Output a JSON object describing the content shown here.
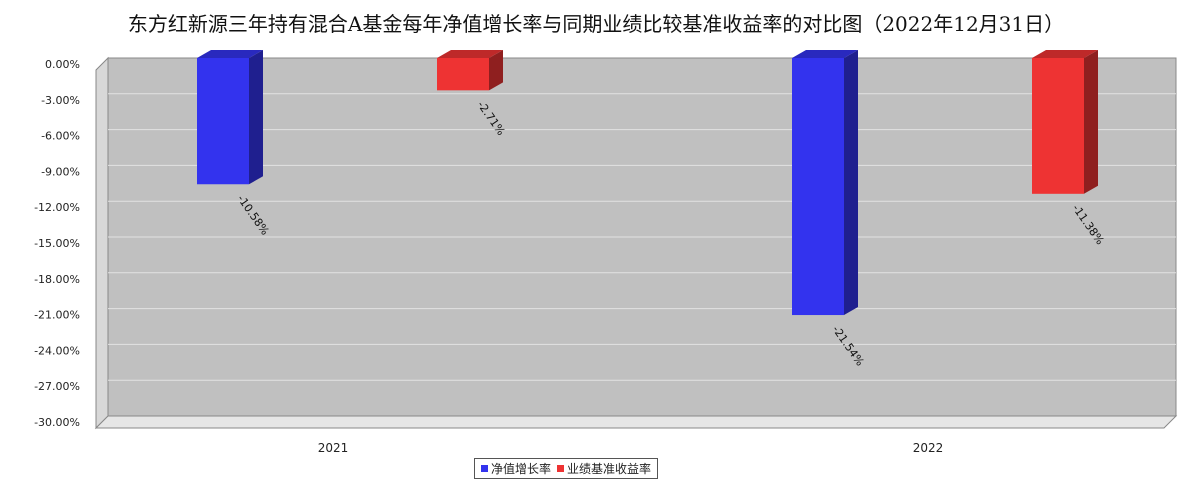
{
  "chart_data": {
    "type": "bar",
    "title": "东方红新源三年持有混合A基金每年净值增长率与同期业绩比较基准收益率的对比图（2022年12月31日）",
    "categories": [
      "2021",
      "2022"
    ],
    "series": [
      {
        "name": "净值增长率",
        "values": [
          -10.58,
          -21.54
        ],
        "labels": [
          "-10.58%",
          "-21.54%"
        ],
        "color": "#3333ee"
      },
      {
        "name": "业绩基准收益率",
        "values": [
          -2.71,
          -11.38
        ],
        "labels": [
          "-2.71%",
          "-11.38%"
        ],
        "color": "#ee3333"
      }
    ],
    "yticks": [
      "0.00%",
      "-3.00%",
      "-6.00%",
      "-9.00%",
      "-12.00%",
      "-15.00%",
      "-18.00%",
      "-21.00%",
      "-24.00%",
      "-27.00%",
      "-30.00%"
    ],
    "ylim": [
      -30,
      0
    ],
    "grid": true,
    "legend_position": "bottom-center",
    "plot_background": "#c0c0c0"
  }
}
